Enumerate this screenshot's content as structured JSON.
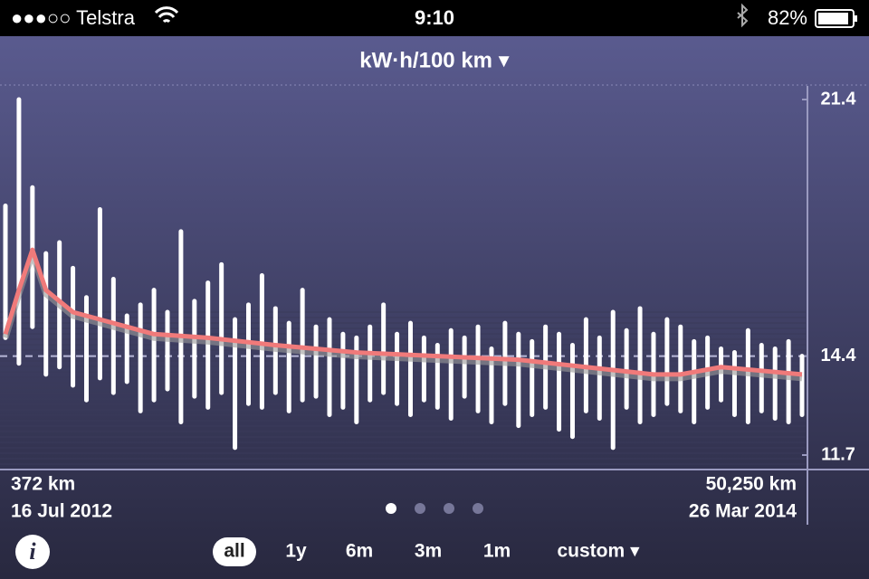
{
  "status_bar": {
    "carrier": "●●●○○ Telstra",
    "time": "9:10",
    "battery": "82%"
  },
  "header": {
    "title": "kW·h/100 km ▾"
  },
  "chart_data": {
    "type": "bar",
    "x": [
      372,
      1217,
      2063,
      2908,
      3754,
      4599,
      5444,
      6290,
      7135,
      7981,
      8826,
      9672,
      10517,
      11362,
      12208,
      13053,
      13899,
      14744,
      15590,
      16435,
      17280,
      18126,
      18971,
      19817,
      20662,
      21508,
      22353,
      23198,
      24044,
      24889,
      25735,
      26580,
      27426,
      28271,
      29116,
      29962,
      30807,
      31653,
      32498,
      33344,
      34189,
      35034,
      35880,
      36725,
      37571,
      38416,
      39262,
      40107,
      40952,
      41798,
      42643,
      43489,
      44334,
      45180,
      46025,
      46870,
      47716,
      48561,
      49407,
      50250
    ],
    "highs": [
      18.5,
      21.4,
      19.0,
      17.2,
      17.5,
      16.8,
      16.0,
      18.4,
      16.5,
      15.5,
      15.8,
      16.2,
      15.6,
      17.8,
      15.9,
      16.4,
      16.9,
      15.4,
      15.8,
      16.6,
      15.7,
      15.3,
      16.2,
      15.2,
      15.4,
      15.0,
      14.9,
      15.2,
      15.8,
      15.0,
      15.3,
      14.9,
      14.7,
      15.1,
      14.9,
      15.2,
      14.6,
      15.3,
      15.0,
      14.8,
      15.2,
      15.0,
      14.7,
      15.4,
      14.9,
      15.6,
      15.1,
      15.7,
      15.0,
      15.4,
      15.2,
      14.8,
      14.9,
      14.6,
      14.5,
      15.1,
      14.7,
      14.6,
      14.8,
      14.4
    ],
    "lows": [
      14.9,
      14.2,
      15.2,
      13.9,
      14.1,
      13.6,
      13.2,
      13.8,
      13.4,
      13.7,
      12.9,
      13.2,
      13.5,
      12.6,
      13.3,
      13.0,
      13.4,
      11.9,
      13.1,
      13.0,
      13.4,
      12.9,
      13.2,
      13.3,
      12.8,
      13.0,
      12.6,
      13.2,
      13.4,
      13.1,
      12.8,
      13.2,
      13.0,
      12.7,
      13.3,
      12.9,
      12.6,
      13.1,
      12.5,
      12.8,
      13.0,
      12.4,
      12.2,
      12.9,
      12.7,
      11.9,
      13.0,
      12.6,
      12.8,
      13.1,
      12.9,
      12.6,
      13.0,
      13.2,
      12.8,
      12.6,
      12.9,
      12.7,
      12.6,
      12.8
    ],
    "bar_color": "#ffffff",
    "average": {
      "x": [
        372,
        1217,
        2063,
        2908,
        4599,
        7135,
        9672,
        13053,
        17280,
        22353,
        27426,
        32498,
        36725,
        40952,
        42643,
        45180,
        47716,
        50250
      ],
      "values": [
        15.0,
        16.2,
        17.3,
        16.2,
        15.6,
        15.3,
        15.0,
        14.9,
        14.7,
        14.5,
        14.4,
        14.3,
        14.1,
        13.9,
        13.9,
        14.1,
        14.0,
        13.9
      ],
      "color": "#f07a7a"
    },
    "mean": 14.4,
    "xlim": [
      372,
      50250
    ],
    "ylim": [
      11.33,
      21.77
    ],
    "yticks": [
      11.7,
      14.4,
      21.4
    ],
    "start_distance": "372 km",
    "start_date": "16 Jul 2012",
    "end_distance": "50,250 km",
    "end_date": "26 Mar 2014"
  },
  "toolbar": {
    "info": "i",
    "ranges": [
      "all",
      "1y",
      "6m",
      "3m",
      "1m",
      "custom ▾"
    ],
    "selected": 0
  }
}
